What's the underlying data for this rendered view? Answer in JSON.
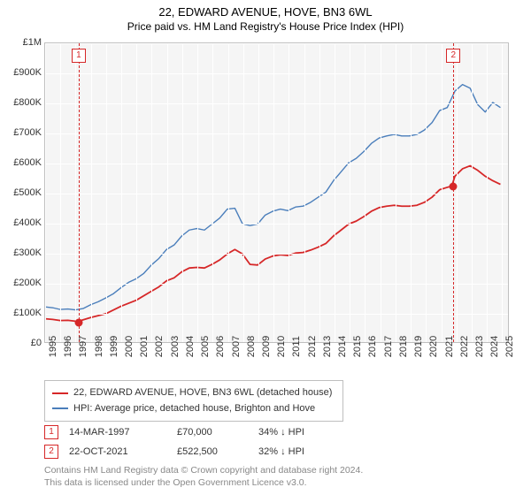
{
  "title": "22, EDWARD AVENUE, HOVE, BN3 6WL",
  "subtitle": "Price paid vs. HM Land Registry's House Price Index (HPI)",
  "chart": {
    "background_color": "#f5f5f5",
    "grid_color": "#ffffff",
    "border_color": "#bfbfbf",
    "x": {
      "min": 1995,
      "max": 2025.5,
      "ticks": [
        1995,
        1996,
        1997,
        1998,
        1999,
        2000,
        2001,
        2002,
        2003,
        2004,
        2005,
        2006,
        2007,
        2008,
        2009,
        2010,
        2011,
        2012,
        2013,
        2014,
        2015,
        2016,
        2017,
        2018,
        2019,
        2020,
        2021,
        2022,
        2023,
        2024,
        2025
      ],
      "tick_fontsize": 11
    },
    "y": {
      "min": 0,
      "max": 1000000,
      "ticks": [
        0,
        100000,
        200000,
        300000,
        400000,
        500000,
        600000,
        700000,
        800000,
        900000,
        1000000
      ],
      "tick_labels": [
        "£0",
        "£100K",
        "£200K",
        "£300K",
        "£400K",
        "£500K",
        "£600K",
        "£700K",
        "£800K",
        "£900K",
        "£1M"
      ],
      "tick_fontsize": 11
    },
    "series": [
      {
        "name": "22, EDWARD AVENUE, HOVE, BN3 6WL (detached house)",
        "color": "#d62728",
        "line_width": 1.8,
        "data": [
          [
            1995,
            78000
          ],
          [
            1995.5,
            76000
          ],
          [
            1996,
            72000
          ],
          [
            1996.5,
            73000
          ],
          [
            1997,
            70000
          ],
          [
            1997.2,
            70000
          ],
          [
            1998,
            82000
          ],
          [
            1999,
            95000
          ],
          [
            2000,
            120000
          ],
          [
            2001,
            140000
          ],
          [
            2002,
            170000
          ],
          [
            2002.5,
            185000
          ],
          [
            2003,
            205000
          ],
          [
            2003.5,
            215000
          ],
          [
            2004,
            235000
          ],
          [
            2004.5,
            248000
          ],
          [
            2005,
            250000
          ],
          [
            2005.5,
            248000
          ],
          [
            2006,
            260000
          ],
          [
            2006.5,
            275000
          ],
          [
            2007,
            295000
          ],
          [
            2007.5,
            310000
          ],
          [
            2008,
            295000
          ],
          [
            2008.5,
            260000
          ],
          [
            2009,
            258000
          ],
          [
            2009.5,
            278000
          ],
          [
            2010,
            288000
          ],
          [
            2010.5,
            292000
          ],
          [
            2011,
            290000
          ],
          [
            2011.5,
            298000
          ],
          [
            2012,
            300000
          ],
          [
            2012.5,
            308000
          ],
          [
            2013,
            318000
          ],
          [
            2013.5,
            330000
          ],
          [
            2014,
            355000
          ],
          [
            2014.5,
            375000
          ],
          [
            2015,
            395000
          ],
          [
            2015.5,
            405000
          ],
          [
            2016,
            420000
          ],
          [
            2016.5,
            438000
          ],
          [
            2017,
            450000
          ],
          [
            2017.5,
            455000
          ],
          [
            2018,
            458000
          ],
          [
            2018.5,
            455000
          ],
          [
            2019,
            455000
          ],
          [
            2019.5,
            458000
          ],
          [
            2020,
            468000
          ],
          [
            2020.5,
            485000
          ],
          [
            2021,
            510000
          ],
          [
            2021.5,
            518000
          ],
          [
            2021.8,
            522500
          ],
          [
            2022,
            555000
          ],
          [
            2022.5,
            580000
          ],
          [
            2023,
            590000
          ],
          [
            2023.5,
            575000
          ],
          [
            2024,
            555000
          ],
          [
            2024.5,
            540000
          ],
          [
            2025,
            528000
          ]
        ]
      },
      {
        "name": "HPI: Average price, detached house, Brighton and Hove",
        "color": "#4a7ebb",
        "line_width": 1.4,
        "data": [
          [
            1995,
            118000
          ],
          [
            1995.5,
            115000
          ],
          [
            1996,
            109000
          ],
          [
            1996.5,
            111000
          ],
          [
            1997,
            108000
          ],
          [
            1997.5,
            112000
          ],
          [
            1998,
            125000
          ],
          [
            1998.5,
            135000
          ],
          [
            1999,
            148000
          ],
          [
            1999.5,
            162000
          ],
          [
            2000,
            182000
          ],
          [
            2000.5,
            200000
          ],
          [
            2001,
            212000
          ],
          [
            2001.5,
            230000
          ],
          [
            2002,
            258000
          ],
          [
            2002.5,
            280000
          ],
          [
            2003,
            310000
          ],
          [
            2003.5,
            325000
          ],
          [
            2004,
            355000
          ],
          [
            2004.5,
            375000
          ],
          [
            2005,
            380000
          ],
          [
            2005.5,
            375000
          ],
          [
            2006,
            395000
          ],
          [
            2006.5,
            415000
          ],
          [
            2007,
            445000
          ],
          [
            2007.5,
            448000
          ],
          [
            2008,
            396000
          ],
          [
            2008.5,
            390000
          ],
          [
            2009,
            395000
          ],
          [
            2009.5,
            425000
          ],
          [
            2010,
            438000
          ],
          [
            2010.5,
            445000
          ],
          [
            2011,
            440000
          ],
          [
            2011.5,
            452000
          ],
          [
            2012,
            455000
          ],
          [
            2012.5,
            468000
          ],
          [
            2013,
            485000
          ],
          [
            2013.5,
            502000
          ],
          [
            2014,
            540000
          ],
          [
            2014.5,
            570000
          ],
          [
            2015,
            600000
          ],
          [
            2015.5,
            615000
          ],
          [
            2016,
            638000
          ],
          [
            2016.5,
            665000
          ],
          [
            2017,
            683000
          ],
          [
            2017.5,
            690000
          ],
          [
            2018,
            695000
          ],
          [
            2018.5,
            690000
          ],
          [
            2019,
            690000
          ],
          [
            2019.5,
            695000
          ],
          [
            2020,
            710000
          ],
          [
            2020.5,
            735000
          ],
          [
            2021,
            775000
          ],
          [
            2021.5,
            785000
          ],
          [
            2022,
            840000
          ],
          [
            2022.5,
            862000
          ],
          [
            2023,
            850000
          ],
          [
            2023.5,
            795000
          ],
          [
            2024,
            770000
          ],
          [
            2024.5,
            802000
          ],
          [
            2025,
            785000
          ]
        ]
      }
    ],
    "sale_markers": [
      {
        "n": "1",
        "year": 1997.2,
        "price": 70000,
        "color": "#d62728"
      },
      {
        "n": "2",
        "year": 2021.8,
        "price": 522500,
        "color": "#d62728"
      }
    ]
  },
  "legend": {
    "series1": "22, EDWARD AVENUE, HOVE, BN3 6WL (detached house)",
    "series1_color": "#d62728",
    "series2": "HPI: Average price, detached house, Brighton and Hove",
    "series2_color": "#4a7ebb"
  },
  "sales": [
    {
      "n": "1",
      "date": "14-MAR-1997",
      "price": "£70,000",
      "diff": "34% ↓ HPI",
      "color": "#d62728"
    },
    {
      "n": "2",
      "date": "22-OCT-2021",
      "price": "£522,500",
      "diff": "32% ↓ HPI",
      "color": "#d62728"
    }
  ],
  "attribution": {
    "line1": "Contains HM Land Registry data © Crown copyright and database right 2024.",
    "line2": "This data is licensed under the Open Government Licence v3.0."
  }
}
